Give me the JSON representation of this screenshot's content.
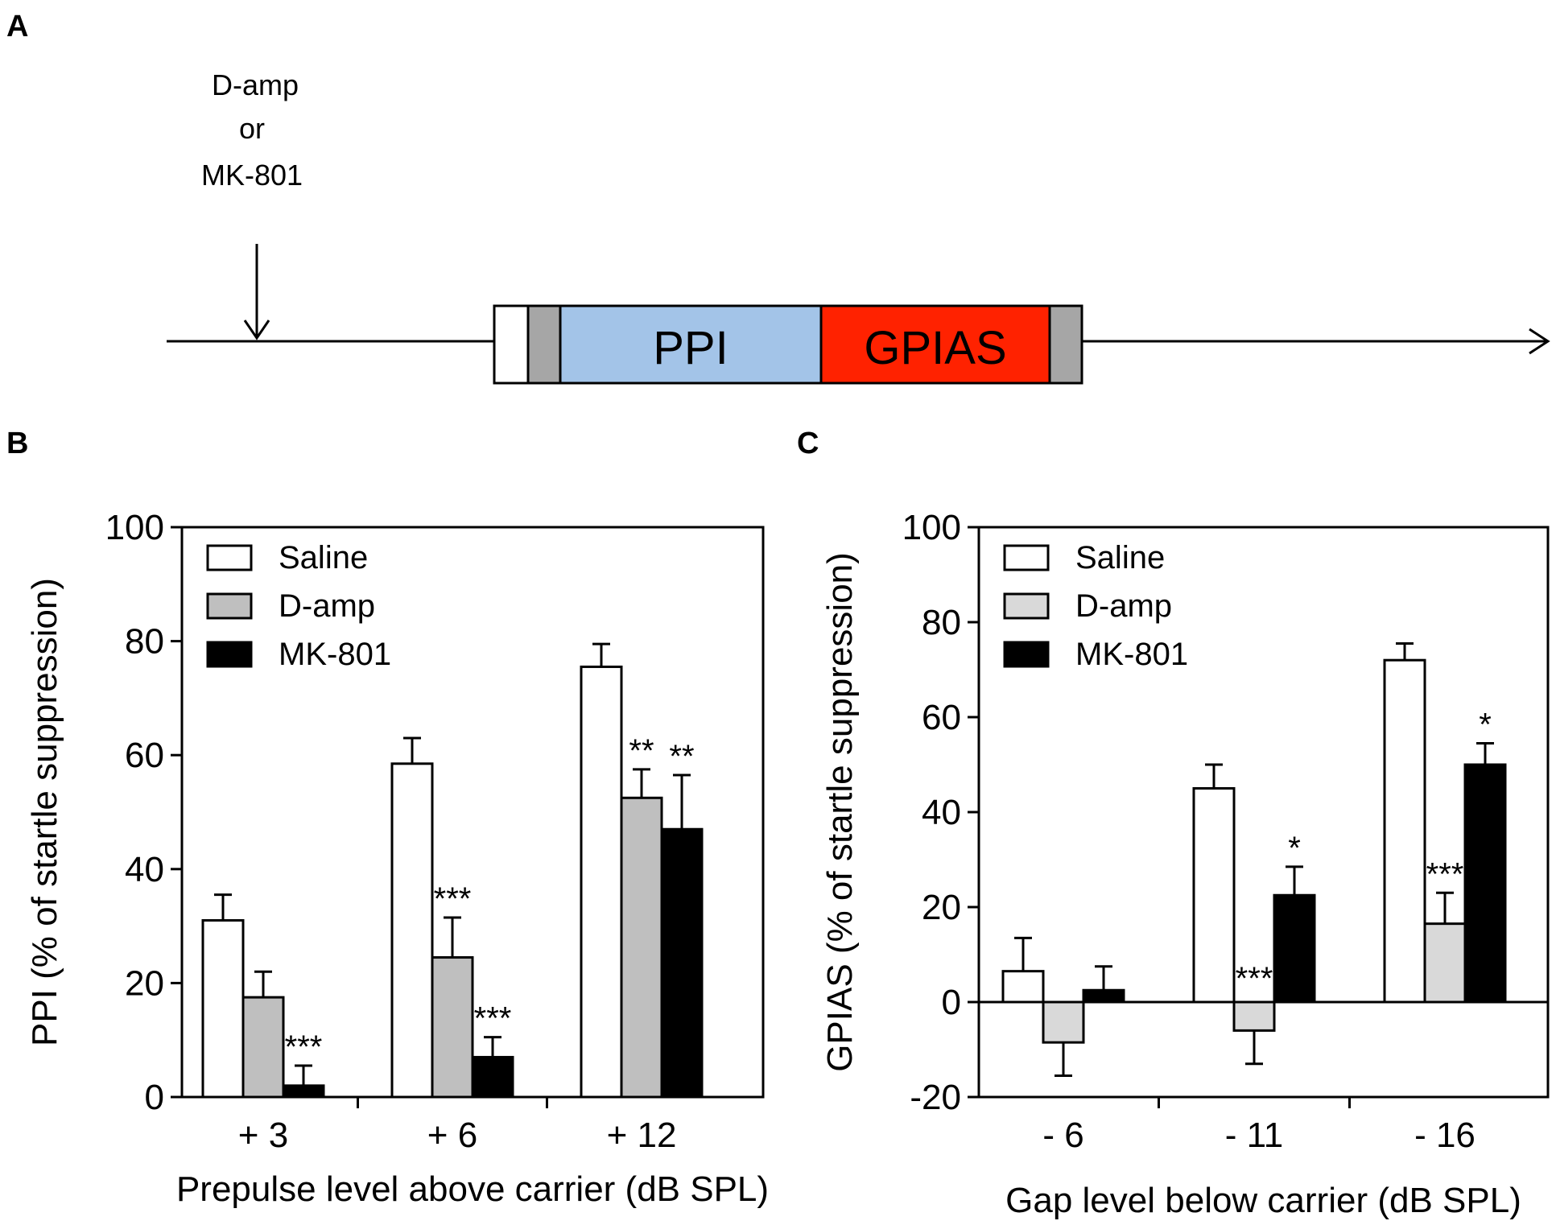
{
  "figure": {
    "panel_a": {
      "letter": "A",
      "drug_line1": "D-amp",
      "drug_line2": "or",
      "drug_line3": "MK-801",
      "ppi_label": "PPI",
      "gpias_label": "GPIAS",
      "colors": {
        "ppi": "#a3c4e8",
        "gpias": "#ff2200",
        "gray": "#a6a6a6",
        "white": "#ffffff"
      }
    },
    "panel_b": {
      "letter": "B"
    },
    "panel_c": {
      "letter": "C"
    }
  },
  "chart_data": [
    {
      "type": "bar",
      "panel": "B",
      "ylabel": "PPI (% of startle suppression)",
      "xlabel": "Prepulse level above carrier (dB SPL)",
      "ylim": [
        0,
        100
      ],
      "yticks": [
        0,
        20,
        40,
        60,
        80,
        100
      ],
      "yticklabels": [
        "0",
        "20",
        "40",
        "60",
        "80",
        "100"
      ],
      "categories": [
        "+ 3",
        "+ 6",
        "+ 12"
      ],
      "legend_position": "top-left",
      "series": [
        {
          "name": "Saline",
          "color": "#ffffff",
          "values": [
            31,
            58.5,
            75.5
          ],
          "errors": [
            4.5,
            4.5,
            4
          ]
        },
        {
          "name": "D-amp",
          "color": "#bfbfbf",
          "values": [
            17.5,
            24.5,
            52.5
          ],
          "errors": [
            4.5,
            7,
            5
          ]
        },
        {
          "name": "MK-801",
          "color": "#000000",
          "values": [
            2,
            7,
            47
          ],
          "errors": [
            3.5,
            3.5,
            9.5
          ]
        }
      ],
      "annotations": [
        {
          "category": 0,
          "series": 2,
          "text": "***"
        },
        {
          "category": 1,
          "series": 1,
          "text": "***"
        },
        {
          "category": 1,
          "series": 2,
          "text": "***"
        },
        {
          "category": 2,
          "series": 1,
          "text": "**"
        },
        {
          "category": 2,
          "series": 2,
          "text": "**"
        }
      ]
    },
    {
      "type": "bar",
      "panel": "C",
      "ylabel": "GPIAS (% of startle suppression)",
      "xlabel": "Gap level below carrier (dB SPL)",
      "ylim": [
        -20,
        100
      ],
      "yticks": [
        -20,
        0,
        20,
        40,
        60,
        80,
        100
      ],
      "yticklabels": [
        "-20",
        "0",
        "20",
        "40",
        "60",
        "80",
        "100"
      ],
      "categories": [
        "- 6",
        "- 11",
        "- 16"
      ],
      "legend_position": "top-left",
      "series": [
        {
          "name": "Saline",
          "color": "#ffffff",
          "values": [
            6.5,
            45,
            72
          ],
          "errors": [
            7,
            5,
            3.5
          ]
        },
        {
          "name": "D-amp",
          "color": "#d9d9d9",
          "values": [
            -8.5,
            -6,
            16.5
          ],
          "errors": [
            7,
            7,
            6.5
          ]
        },
        {
          "name": "MK-801",
          "color": "#000000",
          "values": [
            2.5,
            22.5,
            50
          ],
          "errors": [
            5,
            6,
            4.5
          ]
        }
      ],
      "annotations": [
        {
          "category": 1,
          "series": 1,
          "text": "***"
        },
        {
          "category": 1,
          "series": 2,
          "text": "*"
        },
        {
          "category": 2,
          "series": 1,
          "text": "***"
        },
        {
          "category": 2,
          "series": 2,
          "text": "*"
        }
      ]
    }
  ]
}
